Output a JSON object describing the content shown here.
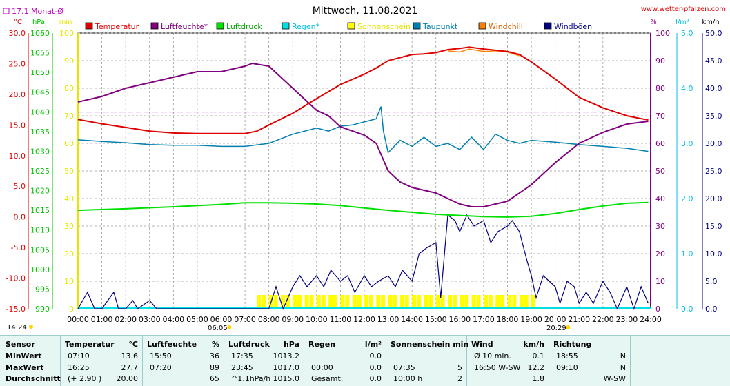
{
  "chart_data": {
    "type": "line",
    "title": "Mittwoch, 11.08.2021",
    "source": "www.wetter-pfalzen.com",
    "monthly_avg_label": "17.1 Monat-Ø",
    "monthly_avg_temp": 17.1,
    "grid": true,
    "legend": [
      "Temperatur",
      "Luftfeuchte*",
      "Luftdruck",
      "Regen*",
      "Sonnenschein",
      "Taupunkt",
      "Windchill",
      "Windböen"
    ],
    "axes": {
      "temp": {
        "unit": "°C",
        "range": [
          -15,
          30
        ],
        "ticks": [
          "30.0",
          "25.0",
          "20.0",
          "15.0",
          "10.0",
          "5.0",
          "0.0",
          "-5.0",
          "-10.0",
          "-15.0"
        ]
      },
      "pressure": {
        "unit": "hPa",
        "range": [
          990,
          1060
        ],
        "ticks": [
          "1060",
          "1055",
          "1050",
          "1045",
          "1040",
          "1035",
          "1030",
          "1025",
          "1020",
          "1015",
          "1010",
          "1005",
          "1000",
          "995",
          "990"
        ]
      },
      "sun": {
        "unit": "min",
        "range": [
          0,
          100
        ],
        "ticks": [
          "100",
          "90",
          "80",
          "70",
          "60",
          "50",
          "40",
          "30",
          "20",
          "10",
          "0"
        ]
      },
      "humidity": {
        "unit": "%",
        "range": [
          0,
          100
        ],
        "ticks": [
          "100",
          "90",
          "80",
          "70",
          "60",
          "50",
          "40",
          "30",
          "20",
          "10",
          "0"
        ]
      },
      "rain": {
        "unit": "l/m²",
        "range": [
          0,
          5
        ],
        "ticks": [
          "5.0",
          "4.0",
          "3.0",
          "2.0",
          "1.0",
          "0.0"
        ]
      },
      "wind": {
        "unit": "km/h",
        "range": [
          0,
          50
        ],
        "ticks": [
          "50.0",
          "45.0",
          "40.0",
          "35.0",
          "30.0",
          "25.0",
          "20.0",
          "15.0",
          "10.0",
          "5.0",
          "0.0"
        ]
      },
      "x_ticks": [
        "00:00",
        "01:00",
        "02:00",
        "03:00",
        "04:00",
        "05:00",
        "06:00",
        "07:00",
        "08:00",
        "09:00",
        "10:00",
        "11:00",
        "12:00",
        "13:00",
        "14:00",
        "15:00",
        "16:00",
        "17:00",
        "18:00",
        "19:00",
        "20:00",
        "21:00",
        "22:00",
        "23:00",
        "24:00"
      ]
    },
    "sunrise": "06:05",
    "sunset": "20:29",
    "day_length": "14:24",
    "temperature": {
      "x": [
        0,
        1,
        2,
        3,
        4,
        5,
        6,
        7,
        7.5,
        8,
        9,
        10,
        11,
        12,
        12.5,
        13,
        14,
        14.5,
        15,
        15.5,
        16,
        16.4,
        17,
        17.5,
        18,
        18.5,
        19,
        20,
        21,
        22,
        23,
        23.9
      ],
      "y": [
        15.9,
        15.2,
        14.6,
        14.0,
        13.7,
        13.6,
        13.6,
        13.6,
        14.0,
        15.0,
        16.9,
        19.3,
        21.6,
        23.3,
        24.3,
        25.5,
        26.5,
        26.6,
        26.8,
        27.3,
        27.5,
        27.7,
        27.4,
        27.2,
        27.0,
        26.5,
        25.3,
        22.5,
        19.5,
        17.8,
        16.5,
        15.8
      ]
    },
    "windchill": {
      "x": [
        15.5,
        16,
        16.4,
        17,
        17.5,
        18,
        18.5
      ],
      "y": [
        27.1,
        26.9,
        27.4,
        27.0,
        27.1,
        26.9,
        26.3
      ]
    },
    "humidity": {
      "x": [
        0,
        1,
        2,
        3,
        4,
        5,
        6,
        7,
        7.3,
        8,
        9,
        10,
        10.5,
        11,
        12,
        12.5,
        13,
        13.5,
        14,
        14.5,
        15,
        15.5,
        16,
        16.5,
        17,
        17.5,
        18,
        19,
        20,
        21,
        22,
        23,
        23.9
      ],
      "y": [
        75,
        77,
        80,
        82,
        84,
        86,
        86,
        88,
        89,
        88,
        80,
        72,
        70,
        66,
        63,
        60,
        50,
        46,
        44,
        43,
        42,
        40,
        38,
        37,
        37,
        38,
        39,
        45,
        53,
        60,
        64,
        67,
        68
      ]
    },
    "pressure": {
      "x": [
        0,
        2,
        4,
        6,
        7,
        8,
        9,
        10,
        11,
        12,
        13,
        14,
        15,
        16,
        17,
        18,
        19,
        20,
        21,
        22,
        23,
        23.9
      ],
      "y": [
        1015.0,
        1015.4,
        1015.9,
        1016.5,
        1016.9,
        1016.9,
        1016.8,
        1016.6,
        1016.2,
        1015.6,
        1015.0,
        1014.5,
        1014.0,
        1013.7,
        1013.4,
        1013.3,
        1013.5,
        1014.2,
        1015.2,
        1016.1,
        1016.8,
        1017.0
      ]
    },
    "dewpoint": {
      "x": [
        0,
        1,
        2,
        3,
        4,
        5,
        6,
        7,
        8,
        9,
        10,
        10.5,
        11,
        11.5,
        12,
        12.5,
        12.7,
        12.8,
        13,
        13.5,
        14,
        14.5,
        15,
        15.5,
        16,
        16.5,
        17,
        17.5,
        18,
        18.5,
        19,
        20,
        21,
        22,
        23,
        23.9
      ],
      "y": [
        12.6,
        12.3,
        12.1,
        11.8,
        11.7,
        11.7,
        11.5,
        11.5,
        12.0,
        13.5,
        14.5,
        14.0,
        14.8,
        15.0,
        15.5,
        16.0,
        18.0,
        14.0,
        10.5,
        12.5,
        11.5,
        13.0,
        11.5,
        12.0,
        11.0,
        13.0,
        11.0,
        13.5,
        12.5,
        12.0,
        12.5,
        12.2,
        11.8,
        11.5,
        11.2,
        10.7
      ]
    },
    "gusts": {
      "x": [
        0,
        0.4,
        0.7,
        1,
        1.5,
        1.7,
        2,
        2.3,
        2.5,
        3,
        3.3,
        3.6,
        4,
        5,
        6,
        7,
        8,
        8.3,
        8.6,
        9,
        9.3,
        9.6,
        10,
        10.3,
        10.6,
        11,
        11.3,
        11.6,
        12,
        12.3,
        12.6,
        13,
        13.3,
        13.6,
        14,
        14.3,
        14.6,
        15,
        15.2,
        15.5,
        15.8,
        16,
        16.3,
        16.6,
        17,
        17.3,
        17.6,
        18,
        18.2,
        18.5,
        18.8,
        19,
        19.2,
        19.5,
        20,
        20.2,
        20.5,
        20.8,
        21,
        21.3,
        21.6,
        22,
        22.3,
        22.6,
        23,
        23.3,
        23.6,
        23.9
      ],
      "y": [
        0,
        3,
        0,
        0,
        3,
        0,
        0,
        1.5,
        0,
        1.5,
        0,
        0,
        0,
        0,
        0,
        0,
        0,
        4,
        0,
        4,
        6,
        4,
        6,
        4,
        7,
        5,
        6,
        3,
        6,
        4,
        5,
        6,
        4,
        7,
        5,
        10,
        11,
        12,
        2,
        17,
        16,
        14,
        17,
        15,
        16,
        12,
        14,
        15,
        16,
        14,
        9,
        6,
        2,
        6,
        4,
        1,
        5,
        4,
        1,
        3,
        1,
        5,
        3,
        0,
        4,
        0,
        4,
        1
      ]
    },
    "sunshine": {
      "x": [
        7.5,
        7.7,
        8.0,
        8.2,
        8.5,
        8.7,
        9.0,
        9.2,
        9.5,
        9.7,
        10.0,
        10.2,
        10.5,
        10.7,
        11.0,
        11.2,
        11.5,
        11.7,
        12.0,
        12.2,
        12.5,
        12.7,
        13.0,
        13.2,
        13.5,
        13.7,
        14.0,
        14.2,
        14.5,
        14.7,
        15.0,
        15.2,
        15.5,
        15.7,
        16.0,
        16.2,
        16.5,
        16.7,
        17.0,
        17.2,
        17.5,
        17.7,
        18.0,
        18.2,
        18.5,
        18.7,
        19.0
      ],
      "y": [
        5,
        5,
        5,
        5,
        5,
        5,
        5,
        5,
        5,
        5,
        5,
        5,
        5,
        5,
        5,
        5,
        5,
        5,
        5,
        5,
        5,
        5,
        5,
        5,
        5,
        5,
        5,
        5,
        5,
        5,
        5,
        5,
        5,
        5,
        5,
        5,
        5,
        5,
        5,
        5,
        5,
        5,
        5,
        5,
        5,
        5,
        5
      ]
    }
  },
  "summary": {
    "columns": [
      {
        "key": "sensor",
        "header": "Sensor",
        "header2": "",
        "rows": [
          "MinWert",
          "MaxWert",
          "Durchschnitt"
        ]
      },
      {
        "key": "temp",
        "header": "Temperatur",
        "header2": "°C",
        "rows": [
          [
            "07:10",
            "13.6"
          ],
          [
            "16:25",
            "27.7"
          ],
          [
            "(+ 2.90 )",
            "20.00"
          ]
        ]
      },
      {
        "key": "hum",
        "header": "Luftfeuchte",
        "header2": "%",
        "rows": [
          [
            "15:50",
            "36"
          ],
          [
            "07:20",
            "89"
          ],
          [
            "",
            "65"
          ]
        ]
      },
      {
        "key": "press",
        "header": "Luftdruck",
        "header2": "hPa",
        "rows": [
          [
            "17:35",
            "1013.2"
          ],
          [
            "23:45",
            "1017.0"
          ],
          [
            "^1.1hPa/h",
            "1015.0"
          ]
        ]
      },
      {
        "key": "rain",
        "header": "Regen",
        "header2": "l/m²",
        "rows": [
          [
            "",
            "0.0"
          ],
          [
            "00:00",
            "0.0"
          ],
          [
            "Gesamt:",
            "0.0"
          ]
        ]
      },
      {
        "key": "sun",
        "header": "Sonnenschein min",
        "header2": "",
        "rows": [
          [
            "",
            ""
          ],
          [
            "07:35",
            "5"
          ],
          [
            "10:00 h",
            "2"
          ]
        ]
      },
      {
        "key": "wind",
        "header": "Wind",
        "header2": "km/h",
        "rows": [
          [
            "Ø 10 min.",
            "0.1"
          ],
          [
            "16:50   W-SW",
            "12.2"
          ],
          [
            "",
            "1.8"
          ]
        ]
      },
      {
        "key": "dir",
        "header": "Richtung",
        "header2": "",
        "rows": [
          [
            "18:55",
            "N"
          ],
          [
            "09:10",
            "N"
          ],
          [
            "",
            "W-SW"
          ]
        ]
      }
    ]
  },
  "colors": {
    "temperature": "#e00000",
    "humidity": "#800080",
    "pressure": "#00e000",
    "rain": "#00e0e0",
    "sunshine": "#ffff00",
    "dewpoint": "#0080b0",
    "windchill": "#ff8000",
    "gusts": "#000080",
    "temp_axis": "#e00000",
    "pressure_axis": "#00c000",
    "sun_axis": "#e6e600",
    "humidity_axis": "#800080",
    "rain_axis": "#00c0e0",
    "wind_axis": "#000080"
  }
}
